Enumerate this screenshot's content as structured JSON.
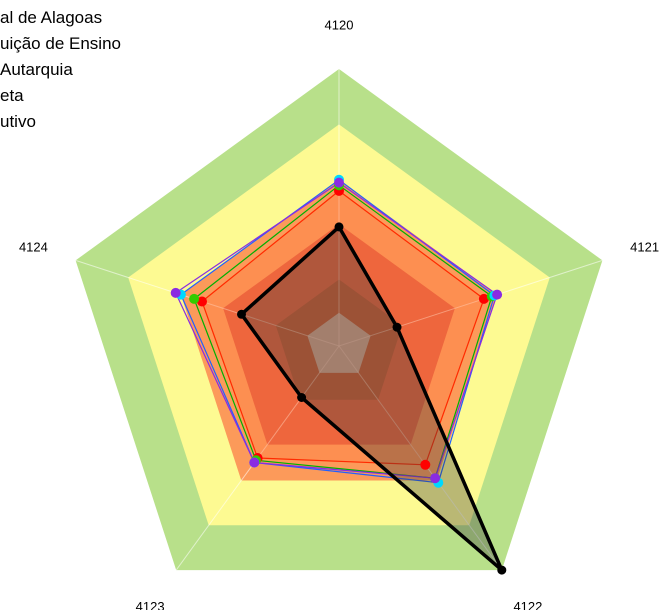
{
  "chart_data": {
    "type": "radar",
    "axes": [
      "4120",
      "4121",
      "4122",
      "4123",
      "4124"
    ],
    "rmax": 5,
    "bands": [
      {
        "from": 4,
        "to": 5,
        "color": "#b8e08a"
      },
      {
        "from": 3,
        "to": 4,
        "color": "#fdfa92"
      },
      {
        "from": 2.2,
        "to": 3,
        "color": "#fc9a5a"
      },
      {
        "from": 1.2,
        "to": 2.2,
        "color": "#e04f35"
      },
      {
        "from": 0.6,
        "to": 1.2,
        "color": "#a84024"
      },
      {
        "from": 0,
        "to": 0.6,
        "color": "#bdbdbd"
      }
    ],
    "legend": [
      "al de Alagoas",
      "uição de Ensino",
      "Autarquia",
      "eta",
      "utivo"
    ],
    "series": [
      {
        "values": [
          2.8,
          2.75,
          2.65,
          2.5,
          2.6
        ],
        "color": "#ff0000",
        "stroke": "#ff2a00",
        "fill": "rgba(255,130,70,0.45)"
      },
      {
        "values": [
          2.9,
          2.9,
          2.95,
          2.55,
          2.75
        ],
        "color": "#33cc00",
        "stroke": "#00b000",
        "fill": ""
      },
      {
        "values": [
          3.0,
          2.95,
          3.05,
          2.6,
          3.0
        ],
        "color": "#00d8ff",
        "stroke": "#2060ff",
        "fill": ""
      },
      {
        "values": [
          2.95,
          3.0,
          2.95,
          2.6,
          3.1
        ],
        "color": "#8a2be2",
        "stroke": "#8a2be2",
        "fill": ""
      },
      {
        "values": [
          2.15,
          1.1,
          5.0,
          1.15,
          1.85
        ],
        "color": "#000000",
        "stroke": "#000000",
        "fill": "rgba(60,60,60,0.35)",
        "bold": true
      }
    ]
  }
}
